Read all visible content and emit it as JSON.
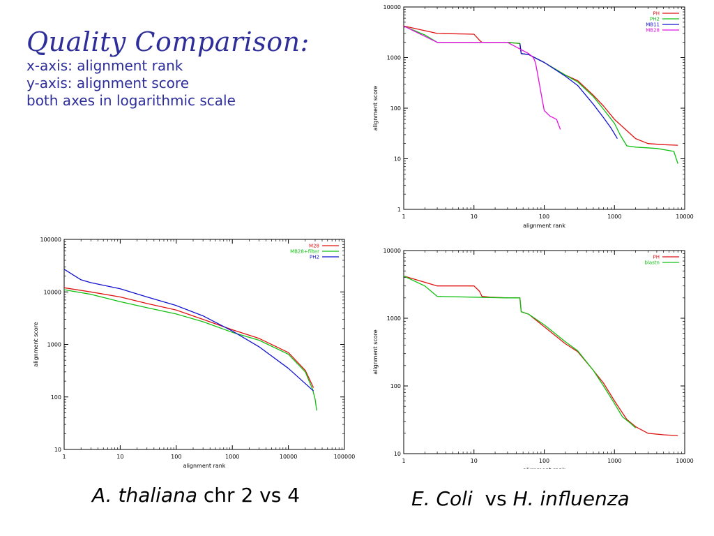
{
  "slide": {
    "title": "Quality Comparison:",
    "lines": [
      "x-axis: alignment rank",
      "y-axis: alignment score",
      "both axes in logarithmic scale"
    ]
  },
  "captions": {
    "left": {
      "italic": "A. thaliana",
      "plain": " chr 2 vs 4"
    },
    "right": {
      "italic1": "E. Coli",
      "mid": "  vs ",
      "italic2": "H. influenza"
    }
  },
  "chart_data": [
    {
      "id": "top-right",
      "type": "line",
      "xscale": "log",
      "yscale": "log",
      "xlim": [
        1,
        10000
      ],
      "ylim": [
        1,
        10000
      ],
      "xticks": [
        1,
        10,
        100,
        1000,
        10000
      ],
      "xtick_labels": [
        "1",
        "10",
        "100",
        "1000",
        "10000"
      ],
      "yticks": [
        1,
        10,
        100,
        1000,
        10000
      ],
      "ytick_labels": [
        "1",
        "10",
        "100",
        "1000",
        "10000"
      ],
      "xlabel": "alignment rank",
      "ylabel": "alignment score",
      "legend_position": "top-right",
      "series": [
        {
          "name": "PH",
          "color": "#e01010",
          "x": [
            1,
            3,
            10,
            12,
            13,
            30,
            45,
            47,
            60,
            100,
            200,
            300,
            500,
            700,
            1000,
            2000,
            3000,
            5000,
            8000
          ],
          "y": [
            4200,
            3000,
            2900,
            2200,
            2000,
            2000,
            1900,
            1200,
            1150,
            800,
            450,
            350,
            180,
            110,
            60,
            25,
            20,
            19,
            18.5
          ]
        },
        {
          "name": "PH2",
          "color": "#10c010",
          "x": [
            1,
            2,
            3,
            10,
            30,
            45,
            47,
            60,
            100,
            200,
            300,
            500,
            700,
            1000,
            1200,
            1500,
            2000,
            4000,
            7000,
            8000
          ],
          "y": [
            4200,
            2800,
            2000,
            2000,
            2000,
            1900,
            1200,
            1150,
            800,
            450,
            330,
            170,
            95,
            50,
            30,
            18,
            17,
            16,
            14,
            8
          ]
        },
        {
          "name": "MB11",
          "color": "#1010d0",
          "x": [
            45,
            47,
            60,
            100,
            200,
            300,
            500,
            700,
            900,
            1100
          ],
          "y": [
            1900,
            1200,
            1150,
            800,
            430,
            280,
            120,
            65,
            40,
            25
          ]
        },
        {
          "name": "MB28",
          "color": "#e010e0",
          "x": [
            1,
            3,
            30,
            60,
            70,
            75,
            80,
            90,
            100,
            120,
            150,
            170
          ],
          "y": [
            4200,
            2000,
            2000,
            1200,
            1000,
            800,
            500,
            200,
            90,
            70,
            60,
            38
          ]
        }
      ]
    },
    {
      "id": "bottom-left",
      "type": "line",
      "xscale": "log",
      "yscale": "log",
      "xlim": [
        1,
        100000
      ],
      "ylim": [
        10,
        100000
      ],
      "xticks": [
        1,
        10,
        100,
        1000,
        10000,
        100000
      ],
      "xtick_labels": [
        "1",
        "10",
        "100",
        "1000",
        "10000",
        "100000"
      ],
      "yticks": [
        10,
        100,
        1000,
        10000,
        100000
      ],
      "ytick_labels": [
        "10",
        "100",
        "1000",
        "10000",
        "100000"
      ],
      "xlabel": "alignment rank",
      "ylabel": "alignment score",
      "legend_position": "top-right",
      "series": [
        {
          "name": "M28",
          "color": "#e01010",
          "x": [
            1,
            3,
            10,
            30,
            100,
            300,
            1000,
            3000,
            10000,
            20000,
            28000
          ],
          "y": [
            12000,
            10000,
            8000,
            6000,
            4500,
            3000,
            1900,
            1300,
            700,
            320,
            150
          ]
        },
        {
          "name": "MB28+filter",
          "color": "#10c010",
          "x": [
            1,
            3,
            10,
            30,
            100,
            300,
            1000,
            3000,
            10000,
            20000,
            27000,
            30000,
            32000
          ],
          "y": [
            11000,
            9000,
            6500,
            5000,
            3800,
            2700,
            1700,
            1200,
            650,
            300,
            140,
            90,
            55
          ]
        },
        {
          "name": "PH2",
          "color": "#1010d0",
          "x": [
            1,
            2,
            3,
            10,
            30,
            100,
            300,
            1000,
            3000,
            10000,
            28000
          ],
          "y": [
            27000,
            17000,
            15000,
            11500,
            8000,
            5500,
            3500,
            1800,
            900,
            350,
            130
          ]
        }
      ]
    },
    {
      "id": "bottom-right",
      "type": "line",
      "xscale": "log",
      "yscale": "log",
      "xlim": [
        1,
        10000
      ],
      "ylim": [
        10,
        10000
      ],
      "xticks": [
        1,
        10,
        100,
        1000,
        10000
      ],
      "xtick_labels": [
        "1",
        "10",
        "100",
        "1000",
        "10000"
      ],
      "yticks": [
        10,
        100,
        1000,
        10000
      ],
      "ytick_labels": [
        "10",
        "100",
        "1000",
        "10000"
      ],
      "xlabel": "alignment rank",
      "ylabel": "alignment score",
      "legend_position": "top-right",
      "series": [
        {
          "name": "PH",
          "color": "#e01010",
          "x": [
            1,
            3,
            10,
            12,
            13,
            17,
            30,
            45,
            47,
            60,
            100,
            200,
            300,
            500,
            700,
            1000,
            1500,
            2000,
            3000,
            5000,
            8000
          ],
          "y": [
            4200,
            3000,
            3000,
            2500,
            2100,
            2050,
            2000,
            2000,
            1250,
            1150,
            750,
            420,
            320,
            170,
            110,
            60,
            32,
            25,
            20,
            19,
            18.5
          ]
        },
        {
          "name": "blastn",
          "color": "#10c010",
          "x": [
            1,
            2,
            3,
            10,
            30,
            45,
            47,
            60,
            100,
            200,
            300,
            500,
            700,
            1000,
            1300,
            1700,
            2000
          ],
          "y": [
            4200,
            3000,
            2100,
            2050,
            2000,
            2000,
            1250,
            1150,
            800,
            450,
            330,
            170,
            100,
            55,
            35,
            28,
            24
          ]
        }
      ]
    }
  ]
}
